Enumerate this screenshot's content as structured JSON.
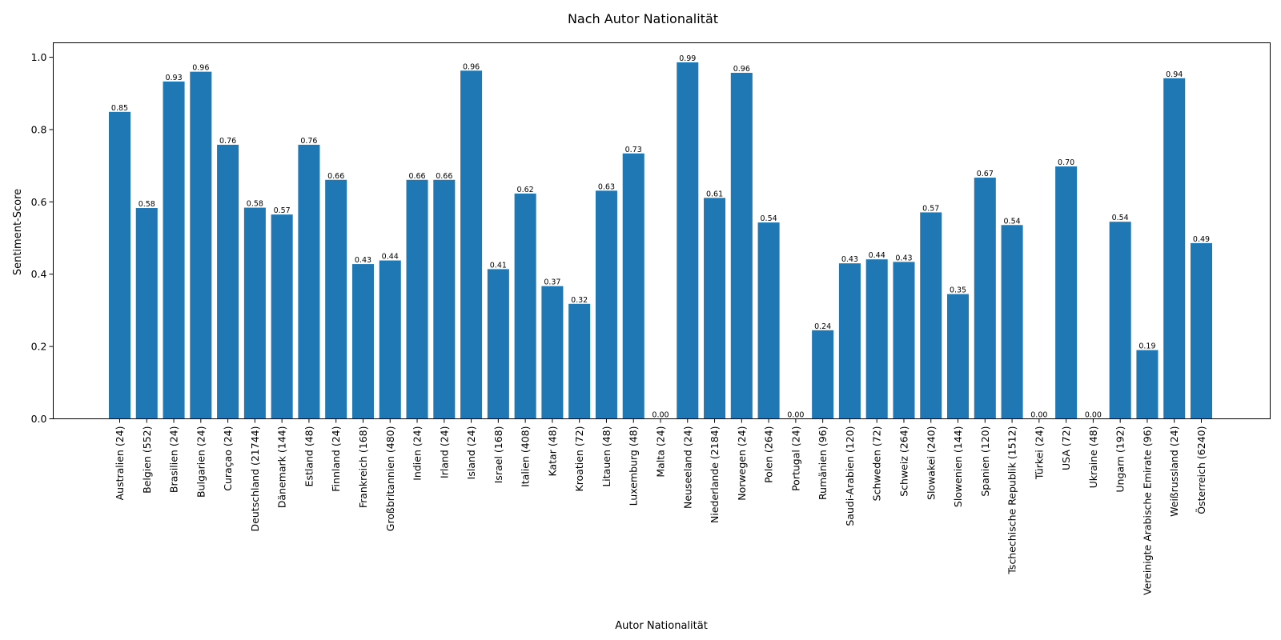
{
  "chart_data": {
    "type": "bar",
    "title": "Nach Autor Nationalität",
    "xlabel": "Autor Nationalität",
    "ylabel": "Sentiment-Score",
    "ylim": [
      0,
      1.04
    ],
    "yticks": [
      "0.0",
      "0.2",
      "0.4",
      "0.6",
      "0.8",
      "1.0"
    ],
    "bar_color": "#1f77b4",
    "grid": false,
    "categories": [
      "Australien (24)",
      "Belgien (552)",
      "Brasilien (24)",
      "Bulgarien (24)",
      "Curaçao (24)",
      "Deutschland (21744)",
      "Dänemark (144)",
      "Estland (48)",
      "Finnland (24)",
      "Frankreich (168)",
      "Großbritannien (480)",
      "Indien (24)",
      "Irland (24)",
      "Island (24)",
      "Israel (168)",
      "Italien (408)",
      "Katar (48)",
      "Kroatien (72)",
      "Litauen (48)",
      "Luxemburg (48)",
      "Malta (24)",
      "Neuseeland (24)",
      "Niederlande (2184)",
      "Norwegen (24)",
      "Polen (264)",
      "Portugal (24)",
      "Rumänien (96)",
      "Saudi-Arabien (120)",
      "Schweden (72)",
      "Schweiz (264)",
      "Slowakei (240)",
      "Slowenien (144)",
      "Spanien (120)",
      "Tschechische Republik (1512)",
      "Türkei (24)",
      "USA (72)",
      "Ukraine (48)",
      "Ungarn (192)",
      "Vereinigte Arabische Emirate (96)",
      "Weißrussland (24)",
      "Österreich (6240)"
    ],
    "values": [
      0.849,
      0.583,
      0.933,
      0.96,
      0.758,
      0.584,
      0.565,
      0.758,
      0.661,
      0.428,
      0.438,
      0.661,
      0.661,
      0.963,
      0.414,
      0.623,
      0.367,
      0.318,
      0.631,
      0.734,
      0.0,
      0.986,
      0.611,
      0.957,
      0.543,
      0.0,
      0.245,
      0.43,
      0.441,
      0.434,
      0.571,
      0.345,
      0.667,
      0.536,
      0.0,
      0.698,
      0.0,
      0.545,
      0.19,
      0.942,
      0.486
    ],
    "value_labels": [
      "0.85",
      "0.58",
      "0.93",
      "0.96",
      "0.76",
      "0.58",
      "0.57",
      "0.76",
      "0.66",
      "0.43",
      "0.44",
      "0.66",
      "0.66",
      "0.96",
      "0.41",
      "0.62",
      "0.37",
      "0.32",
      "0.63",
      "0.73",
      "0.00",
      "0.99",
      "0.61",
      "0.96",
      "0.54",
      "0.00",
      "0.24",
      "0.43",
      "0.44",
      "0.43",
      "0.57",
      "0.35",
      "0.67",
      "0.54",
      "0.00",
      "0.70",
      "0.00",
      "0.54",
      "0.19",
      "0.94",
      "0.49"
    ]
  }
}
